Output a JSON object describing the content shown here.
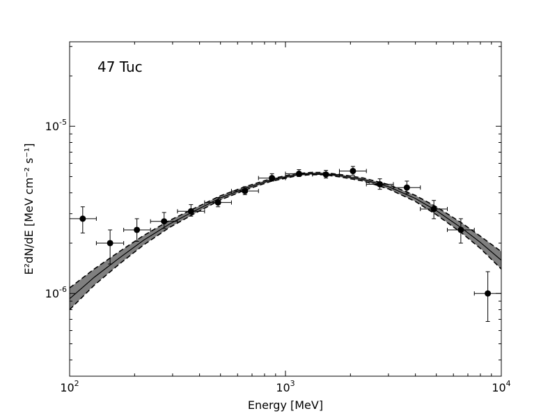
{
  "chart_data": {
    "type": "scatter",
    "title": "",
    "annotation": "47 Tuc",
    "xlabel": "Energy [MeV]",
    "ylabel": "E²dN/dE [MeV cm⁻² s⁻¹]",
    "xscale": "log",
    "yscale": "log",
    "xlim": [
      100,
      10000
    ],
    "ylim": [
      3.2e-07,
      3.2e-05
    ],
    "x_ticks": [
      {
        "value": 100,
        "base": "10",
        "exp": "2"
      },
      {
        "value": 1000,
        "base": "10",
        "exp": "3"
      },
      {
        "value": 10000,
        "base": "10",
        "exp": "4"
      }
    ],
    "y_ticks": [
      {
        "value": 1e-06,
        "base": "10",
        "exp": "-6"
      },
      {
        "value": 1e-05,
        "base": "10",
        "exp": "-5"
      }
    ],
    "model": {
      "name": "best-fit log-parabola spectrum with uncertainty band",
      "x": [
        100,
        130,
        170,
        220,
        290,
        380,
        500,
        650,
        850,
        1100,
        1300,
        1500,
        1800,
        2300,
        3000,
        4000,
        5000,
        6500,
        8000,
        10000
      ],
      "y": [
        9.3e-07,
        1.25e-06,
        1.63e-06,
        2.08e-06,
        2.6e-06,
        3.12e-06,
        3.73e-06,
        4.25e-06,
        4.75e-06,
        5.1e-06,
        5.2e-06,
        5.2e-06,
        5.05e-06,
        4.8e-06,
        4.35e-06,
        3.7e-06,
        3.13e-06,
        2.48e-06,
        2.02e-06,
        1.58e-06
      ],
      "lower": [
        8e-07,
        1.12e-06,
        1.5e-06,
        1.95e-06,
        2.48e-06,
        3.01e-06,
        3.63e-06,
        4.15e-06,
        4.67e-06,
        5.02e-06,
        5.13e-06,
        5.13e-06,
        4.97e-06,
        4.7e-06,
        4.22e-06,
        3.55e-06,
        2.96e-06,
        2.32e-06,
        1.86e-06,
        1.4e-06
      ],
      "upper": [
        1.08e-06,
        1.4e-06,
        1.78e-06,
        2.22e-06,
        2.73e-06,
        3.24e-06,
        3.84e-06,
        4.35e-06,
        4.84e-06,
        5.19e-06,
        5.29e-06,
        5.29e-06,
        5.14e-06,
        4.9e-06,
        4.48e-06,
        3.86e-06,
        3.3e-06,
        2.66e-06,
        2.2e-06,
        1.78e-06
      ]
    },
    "series": [
      {
        "name": "data points",
        "points": [
          {
            "x": 115,
            "y": 2.8e-06,
            "xlo": 100,
            "xhi": 133,
            "ylo": 2.3e-06,
            "yhi": 3.3e-06
          },
          {
            "x": 154,
            "y": 2e-06,
            "xlo": 133,
            "xhi": 178,
            "ylo": 1.5e-06,
            "yhi": 2.4e-06
          },
          {
            "x": 205,
            "y": 2.4e-06,
            "xlo": 178,
            "xhi": 237,
            "ylo": 2.05e-06,
            "yhi": 2.8e-06
          },
          {
            "x": 274,
            "y": 2.7e-06,
            "xlo": 237,
            "xhi": 316,
            "ylo": 2.45e-06,
            "yhi": 3.05e-06
          },
          {
            "x": 365,
            "y": 3.1e-06,
            "xlo": 316,
            "xhi": 422,
            "ylo": 2.9e-06,
            "yhi": 3.4e-06
          },
          {
            "x": 487,
            "y": 3.5e-06,
            "xlo": 422,
            "xhi": 562,
            "ylo": 3.3e-06,
            "yhi": 3.75e-06
          },
          {
            "x": 649,
            "y": 4.1e-06,
            "xlo": 562,
            "xhi": 750,
            "ylo": 3.9e-06,
            "yhi": 4.35e-06
          },
          {
            "x": 866,
            "y": 4.9e-06,
            "xlo": 750,
            "xhi": 1000,
            "ylo": 4.7e-06,
            "yhi": 5.2e-06
          },
          {
            "x": 1155,
            "y": 5.2e-06,
            "xlo": 1000,
            "xhi": 1334,
            "ylo": 5e-06,
            "yhi": 5.5e-06
          },
          {
            "x": 1540,
            "y": 5.15e-06,
            "xlo": 1334,
            "xhi": 1778,
            "ylo": 4.9e-06,
            "yhi": 5.45e-06
          },
          {
            "x": 2054,
            "y": 5.4e-06,
            "xlo": 1778,
            "xhi": 2371,
            "ylo": 5.1e-06,
            "yhi": 5.75e-06
          },
          {
            "x": 2738,
            "y": 4.5e-06,
            "xlo": 2371,
            "xhi": 3162,
            "ylo": 4.2e-06,
            "yhi": 4.85e-06
          },
          {
            "x": 3652,
            "y": 4.3e-06,
            "xlo": 3162,
            "xhi": 4217,
            "ylo": 3.95e-06,
            "yhi": 4.7e-06
          },
          {
            "x": 4870,
            "y": 3.2e-06,
            "xlo": 4217,
            "xhi": 5623,
            "ylo": 2.8e-06,
            "yhi": 3.6e-06
          },
          {
            "x": 6494,
            "y": 2.4e-06,
            "xlo": 5623,
            "xhi": 7499,
            "ylo": 2e-06,
            "yhi": 2.8e-06
          },
          {
            "x": 8660,
            "y": 1e-06,
            "xlo": 7499,
            "xhi": 10000,
            "ylo": 6.8e-07,
            "yhi": 1.35e-06
          }
        ]
      }
    ],
    "grid": false,
    "legend": "none",
    "colors": {
      "band_fill": "#7f7f7f",
      "line": "#000000",
      "marker": "#000000",
      "frame": "#000000"
    }
  }
}
